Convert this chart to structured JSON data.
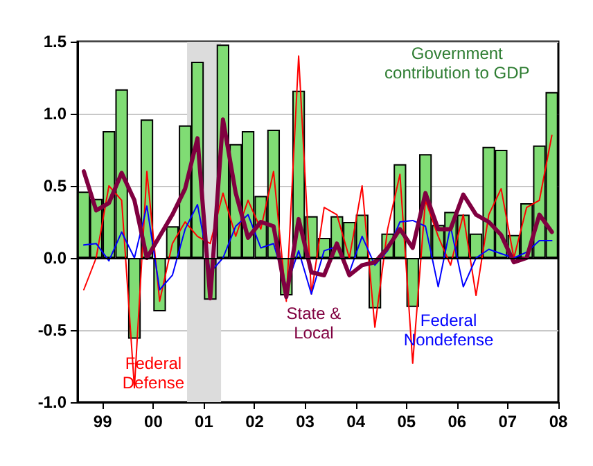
{
  "chart_data": {
    "type": "bar",
    "x": [
      "1999-02-15",
      "1999-05-15",
      "1999-08-15",
      "1999-11-15",
      "2000-02-15",
      "2000-05-15",
      "2000-08-15",
      "2000-11-15",
      "2001-02-15",
      "2001-05-15",
      "2001-08-15",
      "2001-11-15",
      "2002-02-15",
      "2002-05-15",
      "2002-08-15",
      "2002-11-15",
      "2003-02-15",
      "2003-05-15",
      "2003-08-15",
      "2003-11-15",
      "2004-02-15",
      "2004-05-15",
      "2004-08-15",
      "2004-11-15",
      "2005-02-15",
      "2005-05-15",
      "2005-08-15",
      "2005-11-15",
      "2006-02-15",
      "2006-05-15",
      "2006-08-15",
      "2006-11-15",
      "2007-02-15",
      "2007-05-15",
      "2007-08-15",
      "2007-11-15",
      "2008-02-15",
      "2008-05-15"
    ],
    "series": [
      {
        "name": "Government contribution to GDP",
        "color": "#80dc74",
        "values": [
          0.46,
          0.41,
          0.88,
          1.17,
          -0.56,
          0.96,
          -0.37,
          0.22,
          0.92,
          1.36,
          -0.29,
          1.48,
          0.79,
          0.88,
          0.43,
          0.89,
          -0.26,
          1.16,
          0.29,
          0.14,
          0.29,
          0.25,
          0.3,
          -0.35,
          0.17,
          0.65,
          -0.34,
          0.72,
          0.23,
          0.32,
          0.3,
          0.17,
          0.77,
          0.75,
          0.16,
          0.38,
          0.78,
          1.15
        ]
      },
      {
        "name": "Federal Defense",
        "type": "line",
        "color": "#ff0000",
        "values": [
          -0.22,
          0.0,
          0.5,
          0.4,
          -0.9,
          0.6,
          -0.3,
          0.1,
          0.25,
          0.15,
          0.1,
          0.45,
          0.15,
          0.4,
          0.2,
          0.6,
          -0.3,
          1.4,
          -0.25,
          0.35,
          0.3,
          0.0,
          0.5,
          -0.48,
          0.2,
          0.58,
          -0.73,
          0.4,
          0.15,
          -0.05,
          0.3,
          -0.26,
          0.3,
          0.48,
          0.0,
          0.35,
          0.4,
          0.85
        ]
      },
      {
        "name": "Federal Nondefense",
        "type": "line",
        "color": "#0000ff",
        "values": [
          0.09,
          0.1,
          -0.02,
          0.18,
          0.0,
          0.36,
          -0.22,
          -0.12,
          0.2,
          0.37,
          -0.1,
          0.0,
          0.22,
          0.3,
          0.07,
          0.1,
          -0.2,
          0.05,
          -0.25,
          0.05,
          0.08,
          -0.1,
          0.15,
          -0.05,
          0.05,
          0.25,
          0.26,
          0.22,
          -0.2,
          0.22,
          -0.2,
          0.0,
          0.06,
          0.03,
          0.0,
          0.04,
          0.12,
          0.12
        ]
      },
      {
        "name": "State & Local",
        "type": "line",
        "color": "#800040",
        "values": [
          0.6,
          0.33,
          0.38,
          0.59,
          0.4,
          0.0,
          0.15,
          0.3,
          0.48,
          0.83,
          -0.28,
          0.96,
          0.45,
          0.14,
          0.25,
          0.22,
          -0.27,
          0.27,
          -0.1,
          -0.12,
          0.1,
          -0.12,
          -0.05,
          -0.03,
          0.07,
          0.2,
          0.07,
          0.45,
          0.2,
          0.2,
          0.44,
          0.3,
          0.25,
          0.16,
          -0.03,
          0.0,
          0.3,
          0.18
        ]
      }
    ],
    "xlim": [
      "1999-01-01",
      "2008-07-01"
    ],
    "xticks": [
      {
        "value": "1999-07-01",
        "label": "99"
      },
      {
        "value": "2000-07-01",
        "label": "00"
      },
      {
        "value": "2001-07-01",
        "label": "01"
      },
      {
        "value": "2002-07-01",
        "label": "02"
      },
      {
        "value": "2003-07-01",
        "label": "03"
      },
      {
        "value": "2004-07-01",
        "label": "04"
      },
      {
        "value": "2005-07-01",
        "label": "05"
      },
      {
        "value": "2006-07-01",
        "label": "06"
      },
      {
        "value": "2007-07-01",
        "label": "07"
      },
      {
        "value": "2008-07-01",
        "label": "08"
      }
    ],
    "ylim": [
      -1.0,
      1.5
    ],
    "yticks": [
      {
        "value": -1.0,
        "label": "-1.0"
      },
      {
        "value": -0.5,
        "label": "-0.5"
      },
      {
        "value": 0,
        "label": "0.0"
      },
      {
        "value": 0.5,
        "label": "0.5"
      },
      {
        "value": 1.0,
        "label": "1.0"
      },
      {
        "value": 1.5,
        "label": "1.5"
      }
    ],
    "bands": [
      {
        "axis": "x",
        "from": "2001-03-01",
        "to": "2001-11-01",
        "color": "#dcdcdc"
      }
    ],
    "ref_lines": [
      {
        "axis": "y",
        "value": 0,
        "color": "#000000"
      }
    ],
    "grid": "y",
    "legend": false,
    "marker": "none",
    "line_style": "solid"
  }
}
